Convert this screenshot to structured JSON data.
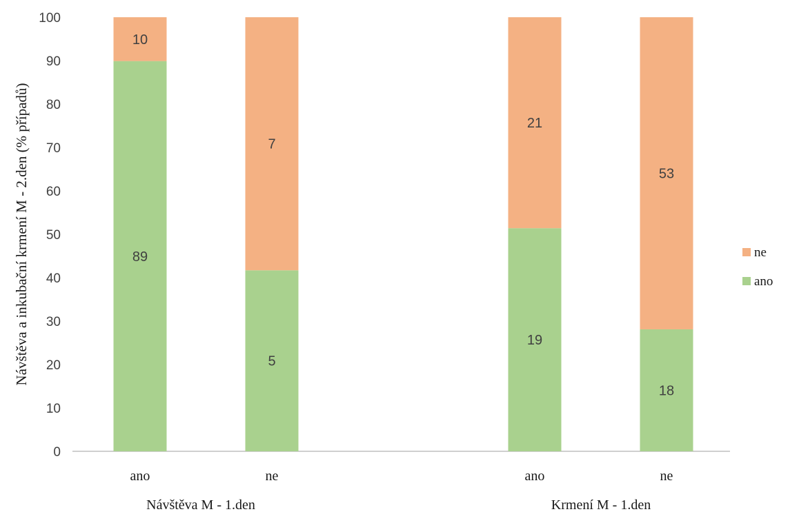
{
  "chart_data": {
    "type": "bar",
    "stacked": true,
    "ylabel": "Návštěva a inkubační krmení M - 2.den (% případů)",
    "ylim": [
      0,
      100
    ],
    "yticks": [
      0,
      10,
      20,
      30,
      40,
      50,
      60,
      70,
      80,
      90,
      100
    ],
    "groups": [
      {
        "label": "Návštěva M - 1.den",
        "categories": [
          "ano",
          "ne"
        ]
      },
      {
        "label": "Krmení M - 1.den",
        "categories": [
          "ano",
          "ne"
        ]
      }
    ],
    "categories": [
      "ano",
      "ne",
      "ano",
      "ne"
    ],
    "series": [
      {
        "name": "ano",
        "color": "#a9d18e",
        "percent": [
          89.9,
          41.7,
          51.4,
          28.1
        ],
        "labels": [
          "89",
          "5",
          "19",
          "18"
        ]
      },
      {
        "name": "ne",
        "color": "#f4b183",
        "percent": [
          10.1,
          58.3,
          48.6,
          71.9
        ],
        "labels": [
          "10",
          "7",
          "21",
          "53"
        ]
      }
    ],
    "legend": {
      "position": "right",
      "items": [
        "ne",
        "ano"
      ]
    },
    "grid": false
  }
}
